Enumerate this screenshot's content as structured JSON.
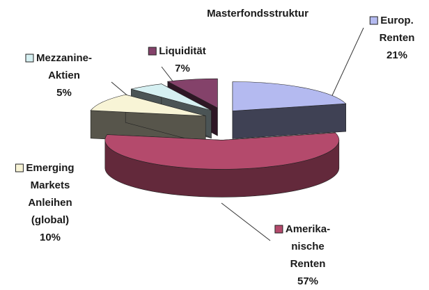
{
  "chart_data": {
    "type": "pie3d",
    "title": "Masterfondsstruktur",
    "categories": [
      "Europ.\nRenten",
      "Amerika-\nnische\nRenten",
      "Emerging\nMarkets\nAnleihen\n(global)",
      "Mezzanine-\nAktien",
      "Liquidität"
    ],
    "values": [
      21,
      57,
      10,
      5,
      7
    ],
    "value_labels": [
      "21%",
      "57%",
      "10%",
      "5%",
      "7%"
    ],
    "colors": [
      "#b4baf0",
      "#b44a6c",
      "#f8f4d6",
      "#d6f0f2",
      "#84426a"
    ]
  }
}
